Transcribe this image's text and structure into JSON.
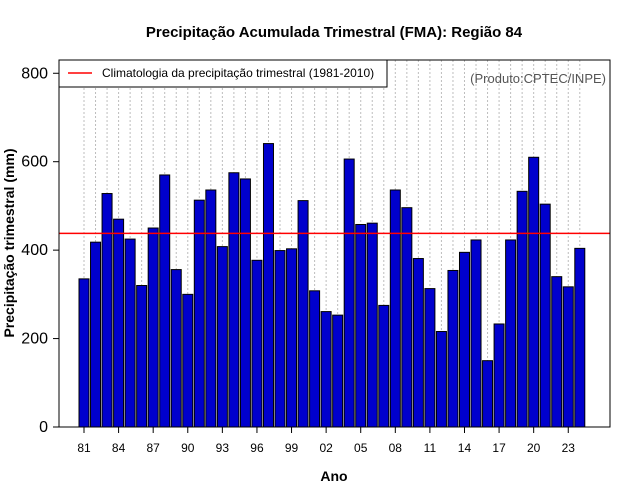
{
  "chart_data": {
    "type": "bar",
    "title": "Precipitação Acumulada Trimestral (FMA): Região 84",
    "xlabel": "Ano",
    "ylabel": "Precipitação trimestral (mm)",
    "ylim": [
      0,
      830
    ],
    "yticks": [
      0,
      200,
      400,
      600,
      800
    ],
    "tick_categories": [
      "81",
      "84",
      "87",
      "90",
      "93",
      "96",
      "99",
      "02",
      "05",
      "08",
      "11",
      "14",
      "17",
      "20",
      "23"
    ],
    "categories": [
      "81",
      "82",
      "83",
      "84",
      "85",
      "86",
      "87",
      "88",
      "89",
      "90",
      "91",
      "92",
      "93",
      "94",
      "95",
      "96",
      "97",
      "98",
      "99",
      "00",
      "01",
      "02",
      "03",
      "04",
      "05",
      "06",
      "07",
      "08",
      "09",
      "10",
      "11",
      "12",
      "13",
      "14",
      "15",
      "16",
      "17",
      "18",
      "19",
      "20",
      "21",
      "22",
      "23",
      "24"
    ],
    "values": [
      335,
      418,
      528,
      470,
      425,
      320,
      450,
      570,
      356,
      300,
      513,
      536,
      408,
      575,
      561,
      377,
      641,
      399,
      403,
      512,
      308,
      261,
      253,
      606,
      458,
      461,
      275,
      536,
      496,
      381,
      313,
      216,
      354,
      395,
      423,
      150,
      233,
      423,
      533,
      610,
      504,
      340,
      317,
      404
    ],
    "bar_color": "#0000cd",
    "grid": true,
    "reference_line": {
      "value": 438,
      "color": "#ff0000",
      "label": "Climatologia da precipitação trimestral (1981-2010)"
    },
    "legend_position": "top-left",
    "annotation": "(Produto:CPTEC/INPE)"
  }
}
